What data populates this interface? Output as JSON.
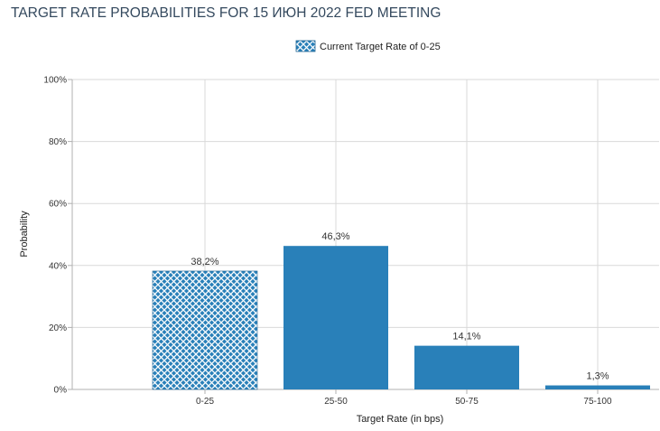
{
  "title": "TARGET RATE PROBABILITIES FOR 15 ИЮН 2022 FED MEETING",
  "legend": {
    "label": "Current Target Rate of 0-25"
  },
  "colors": {
    "bar": "#2980b9",
    "hatch_line": "#ffffff",
    "grid": "#d9d9d9",
    "title": "#34495e"
  },
  "chart_data": {
    "type": "bar",
    "title": "TARGET RATE PROBABILITIES FOR 15 ИЮН 2022 FED MEETING",
    "xlabel": "Target Rate (in bps)",
    "ylabel": "Probability",
    "categories": [
      "0-25",
      "25-50",
      "50-75",
      "75-100"
    ],
    "values": [
      38.2,
      46.3,
      14.1,
      1.3
    ],
    "data_labels": [
      "38,2%",
      "46,3%",
      "14,1%",
      "1,3%"
    ],
    "hatched": [
      true,
      false,
      false,
      false
    ],
    "ylim": [
      0,
      100
    ],
    "yticks": [
      0,
      20,
      40,
      60,
      80,
      100
    ],
    "ytick_labels": [
      "0%",
      "20%",
      "40%",
      "60%",
      "80%",
      "100%"
    ],
    "grid": true,
    "legend_position": "top-center"
  }
}
